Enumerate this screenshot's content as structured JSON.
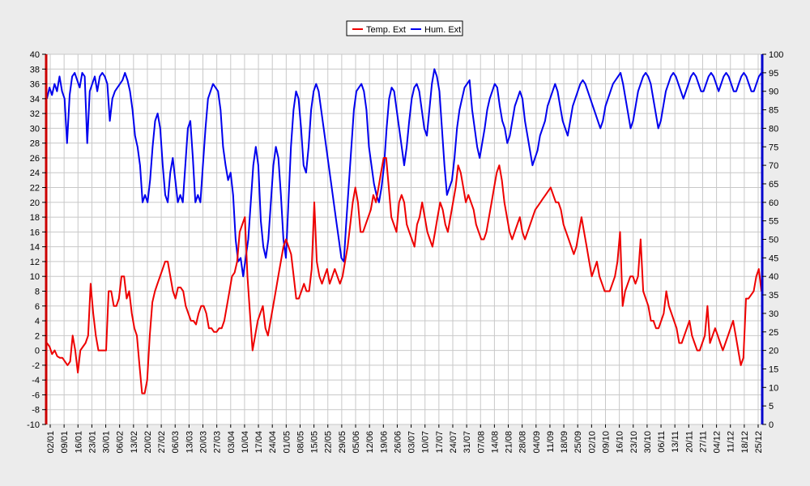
{
  "chart_data": {
    "type": "line",
    "legend": {
      "position": "top-center"
    },
    "grid": true,
    "y_left": {
      "range": [
        -10,
        40
      ],
      "ticks": [
        -10,
        -8,
        -6,
        -4,
        -2,
        0,
        2,
        4,
        6,
        8,
        10,
        12,
        14,
        16,
        18,
        20,
        22,
        24,
        26,
        28,
        30,
        32,
        34,
        36,
        38,
        40
      ]
    },
    "y_right": {
      "range": [
        0,
        100
      ],
      "ticks": [
        0,
        5,
        10,
        15,
        20,
        25,
        30,
        35,
        40,
        45,
        50,
        55,
        60,
        65,
        70,
        75,
        80,
        85,
        90,
        95,
        100
      ]
    },
    "x_labels": [
      "02/01",
      "09/01",
      "16/01",
      "23/01",
      "30/01",
      "06/02",
      "13/02",
      "20/02",
      "27/02",
      "06/03",
      "13/03",
      "20/03",
      "27/03",
      "03/04",
      "10/04",
      "17/04",
      "24/04",
      "01/05",
      "08/05",
      "15/05",
      "22/05",
      "29/05",
      "05/06",
      "12/06",
      "19/06",
      "26/06",
      "03/07",
      "10/07",
      "17/07",
      "24/07",
      "31/07",
      "07/08",
      "14/08",
      "21/08",
      "28/08",
      "04/09",
      "11/09",
      "18/09",
      "25/09",
      "02/10",
      "09/10",
      "16/10",
      "23/10",
      "30/10",
      "06/11",
      "13/11",
      "20/11",
      "27/11",
      "04/12",
      "11/12",
      "18/12",
      "25/12"
    ],
    "series": [
      {
        "name": "Temp. Ext",
        "color": "#ee0000",
        "axis": "left",
        "values": [
          1,
          0.5,
          -0.5,
          0,
          -0.8,
          -1,
          -1,
          -1.5,
          -2,
          -1.5,
          2,
          0,
          -3,
          0,
          0.5,
          1,
          2,
          9,
          5,
          2,
          0,
          0,
          0,
          0,
          8,
          8,
          6,
          6,
          7,
          10,
          10,
          7,
          8,
          5,
          3,
          2,
          -2,
          -5.8,
          -5.8,
          -4,
          2,
          6.5,
          8,
          9,
          10,
          11,
          12,
          12,
          10,
          8,
          7,
          8.5,
          8.5,
          8,
          6,
          5,
          4,
          4,
          3.5,
          5,
          6,
          6,
          5,
          3,
          3,
          2.5,
          2.5,
          3,
          3,
          4,
          6,
          8,
          10,
          10.5,
          12,
          16,
          17,
          18,
          10,
          5,
          0,
          2,
          4,
          5,
          6,
          3,
          2,
          4,
          6,
          8,
          10,
          12,
          14,
          15,
          14,
          13,
          10,
          7,
          7,
          8,
          9,
          8,
          8,
          11,
          20,
          12,
          10,
          9,
          10,
          11,
          9,
          10,
          11,
          10,
          9,
          10,
          12,
          14,
          17,
          20,
          22,
          20,
          16,
          16,
          17,
          18,
          19,
          21,
          20,
          22,
          24,
          26,
          26,
          22,
          18,
          17,
          16,
          20,
          21,
          20,
          17,
          16,
          15,
          14,
          17,
          18,
          20,
          18,
          16,
          15,
          14,
          16,
          18,
          20,
          19,
          17,
          16,
          18,
          20,
          22,
          25,
          24,
          22,
          20,
          21,
          20,
          19,
          17,
          16,
          15,
          15,
          16,
          18,
          20,
          22,
          24,
          25,
          23,
          20,
          18,
          16,
          15,
          16,
          17,
          18,
          16,
          15,
          16,
          17,
          18,
          19,
          19.5,
          20,
          20.5,
          21,
          21.5,
          22,
          21,
          20,
          20,
          19,
          17,
          16,
          15,
          14,
          13,
          14,
          16,
          18,
          16,
          14,
          12,
          10,
          11,
          12,
          10,
          9,
          8,
          8,
          8,
          9,
          10,
          12,
          16,
          6,
          8,
          9,
          10,
          10,
          9,
          10,
          15,
          8,
          7,
          6,
          4,
          4,
          3,
          3,
          4,
          5,
          8,
          6,
          5,
          4,
          3,
          1,
          1,
          2,
          3,
          4,
          2,
          1,
          0,
          0,
          1,
          2,
          6,
          1,
          2,
          3,
          2,
          1,
          0,
          1,
          2,
          3,
          4,
          2,
          0,
          -2,
          -1,
          7,
          7,
          7.5,
          8,
          10,
          11,
          8
        ]
      },
      {
        "name": "Hum. Ext",
        "color": "#0000ee",
        "axis": "right",
        "values": [
          88,
          91,
          89,
          92,
          90,
          94,
          90,
          88,
          76,
          89,
          94,
          95,
          93,
          91,
          95,
          94,
          76,
          90,
          92,
          94,
          90,
          94,
          95,
          94,
          92,
          82,
          88,
          90,
          91,
          92,
          93,
          95,
          93,
          90,
          85,
          78,
          75,
          70,
          60,
          62,
          60,
          66,
          75,
          82,
          84,
          80,
          70,
          62,
          60,
          68,
          72,
          66,
          60,
          62,
          60,
          70,
          80,
          82,
          72,
          60,
          62,
          60,
          70,
          80,
          88,
          90,
          92,
          91,
          90,
          85,
          75,
          70,
          66,
          68,
          62,
          50,
          44,
          45,
          40,
          45,
          50,
          60,
          70,
          75,
          70,
          55,
          48,
          45,
          50,
          60,
          70,
          75,
          72,
          62,
          50,
          45,
          60,
          75,
          85,
          90,
          88,
          80,
          70,
          68,
          75,
          85,
          90,
          92,
          90,
          85,
          80,
          75,
          70,
          65,
          60,
          55,
          50,
          45,
          44,
          55,
          65,
          75,
          85,
          90,
          91,
          92,
          90,
          85,
          75,
          70,
          65,
          62,
          60,
          64,
          70,
          80,
          88,
          91,
          90,
          85,
          80,
          75,
          70,
          75,
          82,
          88,
          91,
          92,
          90,
          85,
          80,
          78,
          85,
          92,
          96,
          94,
          90,
          80,
          70,
          62,
          64,
          66,
          72,
          80,
          85,
          88,
          91,
          92,
          93,
          85,
          80,
          75,
          72,
          76,
          80,
          85,
          88,
          90,
          92,
          91,
          86,
          82,
          80,
          76,
          78,
          82,
          86,
          88,
          90,
          88,
          82,
          78,
          74,
          70,
          72,
          74,
          78,
          80,
          82,
          86,
          88,
          90,
          92,
          90,
          86,
          82,
          80,
          78,
          82,
          86,
          88,
          90,
          92,
          93,
          92,
          90,
          88,
          86,
          84,
          82,
          80,
          82,
          86,
          88,
          90,
          92,
          93,
          94,
          95,
          92,
          88,
          84,
          80,
          82,
          86,
          90,
          92,
          94,
          95,
          94,
          92,
          88,
          84,
          80,
          82,
          86,
          90,
          92,
          94,
          95,
          94,
          92,
          90,
          88,
          90,
          92,
          94,
          95,
          94,
          92,
          90,
          90,
          92,
          94,
          95,
          94,
          92,
          90,
          92,
          94,
          95,
          94,
          92,
          90,
          90,
          92,
          94,
          95,
          94,
          92,
          90,
          90,
          92,
          94,
          95
        ]
      }
    ]
  }
}
